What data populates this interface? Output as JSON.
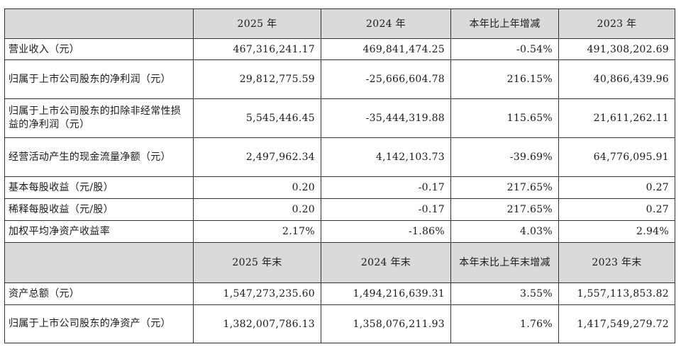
{
  "header1": [
    "2025 年",
    "2024 年",
    "本年比上年增减",
    "2023 年"
  ],
  "rows1": [
    {
      "label": "营业收入（元）",
      "values": [
        "467,316,241.17",
        "469,841,474.25",
        "-0.54%",
        "491,308,202.69"
      ]
    },
    {
      "label": "归属于上市公司股东的净利润（元）",
      "values": [
        "29,812,775.59",
        "-25,666,604.78",
        "216.15%",
        "40,866,439.96"
      ]
    },
    {
      "label": "归属于上市公司股东的扣除非经常性损益的净利润（元）",
      "values": [
        "5,545,446.45",
        "-35,444,319.88",
        "115.65%",
        "21,611,262.11"
      ]
    },
    {
      "label": "经营活动产生的现金流量净额（元）",
      "values": [
        "2,497,962.34",
        "4,142,103.73",
        "-39.69%",
        "64,776,095.91"
      ]
    },
    {
      "label": "基本每股收益（元/股）",
      "values": [
        "0.20",
        "-0.17",
        "217.65%",
        "0.27"
      ]
    },
    {
      "label": "稀释每股收益（元/股）",
      "values": [
        "0.20",
        "-0.17",
        "217.65%",
        "0.27"
      ]
    },
    {
      "label": "加权平均净资产收益率",
      "values": [
        "2.17%",
        "-1.86%",
        "4.03%",
        "2.94%"
      ]
    }
  ],
  "header2": [
    "2025 年末",
    "2024 年末",
    "本年末比上年末增减",
    "2023 年末"
  ],
  "rows2": [
    {
      "label": "资产总额（元）",
      "values": [
        "1,547,273,235.60",
        "1,494,216,639.31",
        "3.55%",
        "1,557,113,853.82"
      ]
    },
    {
      "label": "归属于上市公司股东的净资产（元）",
      "values": [
        "1,382,007,786.13",
        "1,358,076,211.93",
        "1.76%",
        "1,417,549,279.72"
      ]
    }
  ]
}
